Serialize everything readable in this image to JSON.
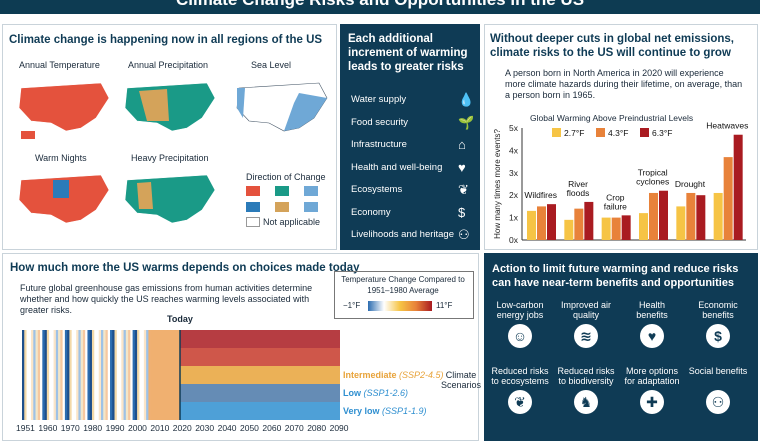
{
  "title": "Climate Change Risks and Opportunities in the US",
  "panel1": {
    "heading": "Climate change is happening now in all regions of the US",
    "maps": [
      "Annual Temperature",
      "Annual Precipitation",
      "Sea Level",
      "Warm Nights",
      "Heavy Precipitation"
    ],
    "legend_title": "Direction of Change",
    "not_applicable": "Not applicable"
  },
  "panel2": {
    "heading": "Each additional increment of warming leads to greater risks",
    "items": [
      {
        "label": "Water supply",
        "icon": "water-drop-icon",
        "glyph": "💧"
      },
      {
        "label": "Food security",
        "icon": "plant-icon",
        "glyph": "🌱"
      },
      {
        "label": "Infrastructure",
        "icon": "house-icon",
        "glyph": "⌂"
      },
      {
        "label": "Health and well-being",
        "icon": "heart-icon",
        "glyph": "♥"
      },
      {
        "label": "Ecosystems",
        "icon": "sprout-icon",
        "glyph": "❦"
      },
      {
        "label": "Economy",
        "icon": "dollar-icon",
        "glyph": "$"
      },
      {
        "label": "Livelihoods and heritage",
        "icon": "people-icon",
        "glyph": "⚇"
      }
    ]
  },
  "panel3": {
    "heading": "Without deeper cuts in global net emissions, climate risks to the US will continue to grow",
    "bullet": "A person born in North America in 2020 will experience more climate hazards during their lifetime, on average, than a person born in 1965."
  },
  "chart_data": {
    "type": "bar",
    "title": "Global Warming Above Preindustrial Levels",
    "ylabel": "How many times more events?",
    "ylim": [
      0,
      5
    ],
    "yticks": [
      "0x",
      "1x",
      "2x",
      "3x",
      "4x",
      "5x"
    ],
    "categories": [
      "Wildfires",
      "River floods",
      "Crop failure",
      "Tropical cyclones",
      "Drought",
      "Heatwaves"
    ],
    "series": [
      {
        "name": "2.7°F",
        "color": "#f6c445",
        "values": [
          1.3,
          0.9,
          1.0,
          1.2,
          1.5,
          2.1
        ]
      },
      {
        "name": "4.3°F",
        "color": "#e8823a",
        "values": [
          1.5,
          1.4,
          1.0,
          2.1,
          2.1,
          3.7
        ]
      },
      {
        "name": "6.3°F",
        "color": "#a91b21",
        "values": [
          1.6,
          1.7,
          1.1,
          2.2,
          2.0,
          4.7
        ]
      }
    ]
  },
  "panel4": {
    "heading": "How much more the US warms depends on choices made today",
    "bullet": "Future global greenhouse gas emissions from human activities determine whether and how quickly the US reaches warming levels associated with greater risks.",
    "legend_title": "Temperature Change Compared to 1951–1980 Average",
    "legend_min": "−1°F",
    "legend_max": "11°F",
    "today": "Today",
    "years": [
      "1951",
      "1960",
      "1970",
      "1980",
      "1990",
      "2000",
      "2010",
      "2020",
      "2030",
      "2040",
      "2050",
      "2060",
      "2070",
      "2080",
      "2090"
    ],
    "scenarios": [
      {
        "label": "Very high",
        "code": "(SSP5-8.5)",
        "color": "#a91b21"
      },
      {
        "label": "High",
        "code": "(SSP3-7.0)",
        "color": "#c73a2a"
      },
      {
        "label": "Intermediate",
        "code": "(SSP2-4.5)",
        "color": "#e8a33a"
      },
      {
        "label": "Low",
        "code": "(SSP1-2.6)",
        "color": "#4a78a8"
      },
      {
        "label": "Very low",
        "code": "(SSP1-1.9)",
        "color": "#2f8fd0"
      }
    ],
    "scenarios_label": "Climate Scenarios"
  },
  "panel5": {
    "heading": "Action to limit future warming and reduce risks can have near-term benefits and opportunities",
    "benefits": [
      {
        "label": "Low-carbon energy jobs",
        "icon": "worker-icon",
        "glyph": "☺"
      },
      {
        "label": "Improved air quality",
        "icon": "wind-icon",
        "glyph": "≋"
      },
      {
        "label": "Health benefits",
        "icon": "heart-icon",
        "glyph": "♥"
      },
      {
        "label": "Economic benefits",
        "icon": "dollar-icon",
        "glyph": "$"
      },
      {
        "label": "Reduced risks to ecosystems",
        "icon": "sprout-icon",
        "glyph": "❦"
      },
      {
        "label": "Reduced risks to biodiversity",
        "icon": "deer-icon",
        "glyph": "♞"
      },
      {
        "label": "More options for adaptation",
        "icon": "puzzle-icon",
        "glyph": "✚"
      },
      {
        "label": "Social benefits",
        "icon": "group-icon",
        "glyph": "⚇"
      }
    ]
  }
}
